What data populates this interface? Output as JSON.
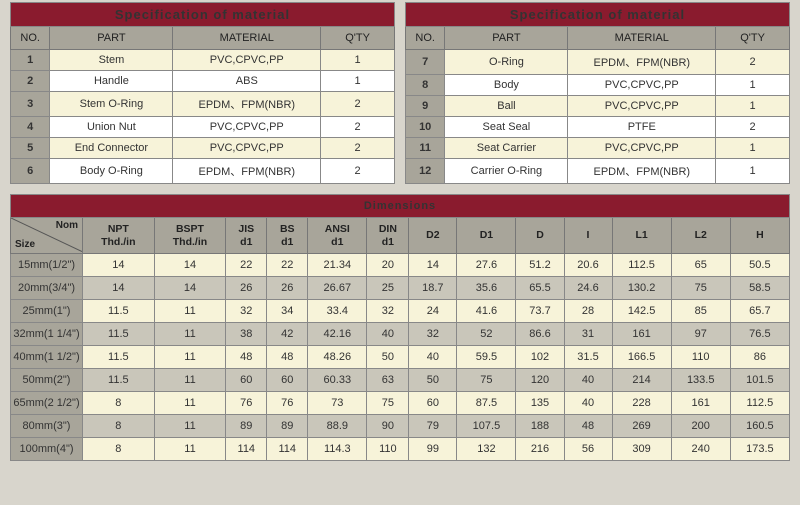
{
  "spec_title": "Specification of material",
  "spec_headers": {
    "no": "NO.",
    "part": "PART",
    "material": "MATERIAL",
    "qty": "Q'TY"
  },
  "spec_left": [
    {
      "no": "1",
      "part": "Stem",
      "material": "PVC,CPVC,PP",
      "qty": "1"
    },
    {
      "no": "2",
      "part": "Handle",
      "material": "ABS",
      "qty": "1"
    },
    {
      "no": "3",
      "part": "Stem O-Ring",
      "material": "EPDM、FPM(NBR)",
      "qty": "2"
    },
    {
      "no": "4",
      "part": "Union Nut",
      "material": "PVC,CPVC,PP",
      "qty": "2"
    },
    {
      "no": "5",
      "part": "End Connector",
      "material": "PVC,CPVC,PP",
      "qty": "2"
    },
    {
      "no": "6",
      "part": "Body O-Ring",
      "material": "EPDM、FPM(NBR)",
      "qty": "2"
    }
  ],
  "spec_right": [
    {
      "no": "7",
      "part": "O-Ring",
      "material": "EPDM、FPM(NBR)",
      "qty": "2"
    },
    {
      "no": "8",
      "part": "Body",
      "material": "PVC,CPVC,PP",
      "qty": "1"
    },
    {
      "no": "9",
      "part": "Ball",
      "material": "PVC,CPVC,PP",
      "qty": "1"
    },
    {
      "no": "10",
      "part": "Seat Seal",
      "material": "PTFE",
      "qty": "2"
    },
    {
      "no": "11",
      "part": "Seat Carrier",
      "material": "PVC,CPVC,PP",
      "qty": "1"
    },
    {
      "no": "12",
      "part": "Carrier O-Ring",
      "material": "EPDM、FPM(NBR)",
      "qty": "1"
    }
  ],
  "dim_title": "Dimensions",
  "dim_size_nom": "Nom",
  "dim_size_label": "Size",
  "dim_columns": [
    "NPT\nThd./in",
    "BSPT\nThd./in",
    "JIS\nd1",
    "BS\nd1",
    "ANSI\nd1",
    "DIN\nd1",
    "D2",
    "D1",
    "D",
    "I",
    "L1",
    "L2",
    "H"
  ],
  "dim_rows": [
    {
      "size": "15mm(1/2\")",
      "v": [
        "14",
        "14",
        "22",
        "22",
        "21.34",
        "20",
        "14",
        "27.6",
        "51.2",
        "20.6",
        "112.5",
        "65",
        "50.5"
      ]
    },
    {
      "size": "20mm(3/4\")",
      "v": [
        "14",
        "14",
        "26",
        "26",
        "26.67",
        "25",
        "18.7",
        "35.6",
        "65.5",
        "24.6",
        "130.2",
        "75",
        "58.5"
      ]
    },
    {
      "size": "25mm(1\")",
      "v": [
        "11.5",
        "11",
        "32",
        "34",
        "33.4",
        "32",
        "24",
        "41.6",
        "73.7",
        "28",
        "142.5",
        "85",
        "65.7"
      ]
    },
    {
      "size": "32mm(1 1/4\")",
      "v": [
        "11.5",
        "11",
        "38",
        "42",
        "42.16",
        "40",
        "32",
        "52",
        "86.6",
        "31",
        "161",
        "97",
        "76.5"
      ]
    },
    {
      "size": "40mm(1 1/2\")",
      "v": [
        "11.5",
        "11",
        "48",
        "48",
        "48.26",
        "50",
        "40",
        "59.5",
        "102",
        "31.5",
        "166.5",
        "110",
        "86"
      ]
    },
    {
      "size": "50mm(2\")",
      "v": [
        "11.5",
        "11",
        "60",
        "60",
        "60.33",
        "63",
        "50",
        "75",
        "120",
        "40",
        "214",
        "133.5",
        "101.5"
      ]
    },
    {
      "size": "65mm(2 1/2\")",
      "v": [
        "8",
        "11",
        "76",
        "76",
        "73",
        "75",
        "60",
        "87.5",
        "135",
        "40",
        "228",
        "161",
        "112.5"
      ]
    },
    {
      "size": "80mm(3\")",
      "v": [
        "8",
        "11",
        "89",
        "89",
        "88.9",
        "90",
        "79",
        "107.5",
        "188",
        "48",
        "269",
        "200",
        "160.5"
      ]
    },
    {
      "size": "100mm(4\")",
      "v": [
        "8",
        "11",
        "114",
        "114",
        "114.3",
        "110",
        "99",
        "132",
        "216",
        "56",
        "309",
        "240",
        "173.5"
      ]
    }
  ],
  "colors": {
    "header_bg": "#8a1b2e",
    "th_bg": "#a8a59a",
    "row_light": "#f7f3d9",
    "row_alt": "#c9c6ba",
    "row_white": "#ffffff"
  }
}
